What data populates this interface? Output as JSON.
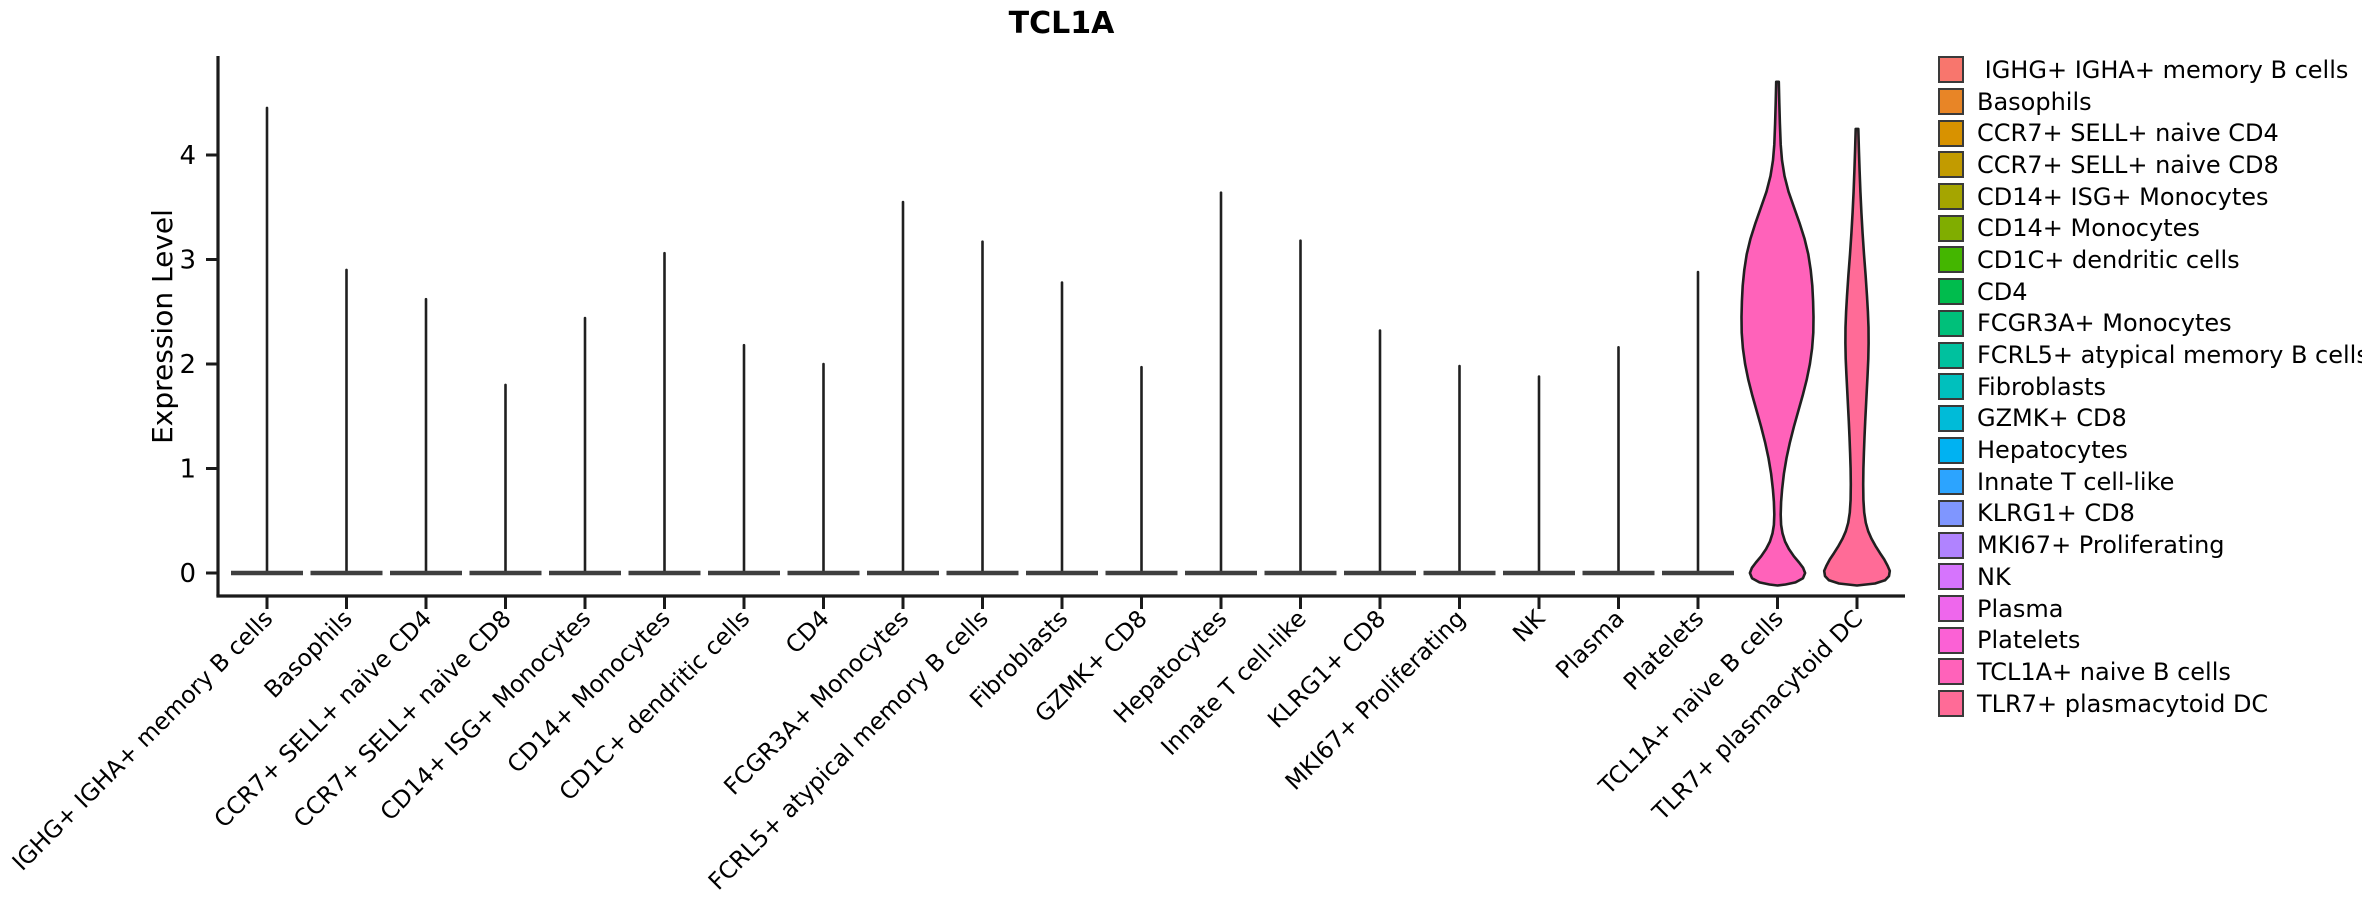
{
  "title": "TCL1A",
  "chart_data": {
    "type": "violin",
    "title": "TCL1A",
    "xlabel": "",
    "ylabel": "Expression Level",
    "ylim": [
      -0.25,
      4.95
    ],
    "yticks": [
      0,
      1,
      2,
      3,
      4
    ],
    "grid": false,
    "legend_position": "right",
    "categories": [
      "IGHG+ IGHA+ memory B cells",
      "Basophils",
      "CCR7+ SELL+ naive CD4",
      "CCR7+ SELL+ naive CD8",
      "CD14+ ISG+ Monocytes",
      "CD14+ Monocytes",
      "CD1C+ dendritic cells",
      "CD4",
      "FCGR3A+ Monocytes",
      "FCRL5+ atypical memory B cells",
      "Fibroblasts",
      "GZMK+ CD8",
      "Hepatocytes",
      "Innate T cell-like",
      "KLRG1+ CD8",
      "MKI67+ Proliferating",
      "NK",
      "Plasma",
      "Platelets",
      "TCL1A+ naive B cells",
      "TLR7+ plasmacytoid DC"
    ],
    "legend_labels": [
      " IGHG+ IGHA+ memory B cells",
      "Basophils",
      "CCR7+ SELL+ naive CD4",
      "CCR7+ SELL+ naive CD8",
      "CD14+ ISG+ Monocytes",
      "CD14+ Monocytes",
      "CD1C+ dendritic cells",
      "CD4",
      "FCGR3A+ Monocytes",
      "FCRL5+ atypical memory B cells",
      "Fibroblasts",
      "GZMK+ CD8",
      "Hepatocytes",
      "Innate T cell-like",
      "KLRG1+ CD8",
      "MKI67+ Proliferating",
      "NK",
      "Plasma",
      "Platelets",
      "TCL1A+ naive B cells",
      "TLR7+ plasmacytoid DC"
    ],
    "colors": [
      "#F8766D",
      "#E88526",
      "#D89200",
      "#C29B00",
      "#A5A500",
      "#80AD00",
      "#44B600",
      "#00BC4D",
      "#00C07A",
      "#00C19E",
      "#00C0BD",
      "#00BBD8",
      "#00B2F2",
      "#2CA4FF",
      "#7F96FF",
      "#B083FF",
      "#D674FD",
      "#EE67EC",
      "#FB61D5",
      "#FF62BA",
      "#FF6B97"
    ],
    "series": [
      {
        "name": "IGHG+ IGHA+ memory B cells",
        "shape": "spike",
        "min": 0,
        "max": 4.45
      },
      {
        "name": "Basophils",
        "shape": "spike",
        "min": 0,
        "max": 2.9
      },
      {
        "name": "CCR7+ SELL+ naive CD4",
        "shape": "spike",
        "min": 0,
        "max": 2.62
      },
      {
        "name": "CCR7+ SELL+ naive CD8",
        "shape": "spike",
        "min": 0,
        "max": 1.8
      },
      {
        "name": "CD14+ ISG+ Monocytes",
        "shape": "spike",
        "min": 0,
        "max": 2.44
      },
      {
        "name": "CD14+ Monocytes",
        "shape": "spike",
        "min": 0,
        "max": 3.06
      },
      {
        "name": "CD1C+ dendritic cells",
        "shape": "spike",
        "min": 0,
        "max": 2.18
      },
      {
        "name": "CD4",
        "shape": "spike",
        "min": 0,
        "max": 2.0
      },
      {
        "name": "FCGR3A+ Monocytes",
        "shape": "spike",
        "min": 0,
        "max": 3.55
      },
      {
        "name": "FCRL5+ atypical memory B cells",
        "shape": "spike",
        "min": 0,
        "max": 3.17
      },
      {
        "name": "Fibroblasts",
        "shape": "spike",
        "min": 0,
        "max": 2.78
      },
      {
        "name": "GZMK+ CD8",
        "shape": "spike",
        "min": 0,
        "max": 1.97
      },
      {
        "name": "Hepatocytes",
        "shape": "spike",
        "min": 0,
        "max": 3.64
      },
      {
        "name": "Innate T cell-like",
        "shape": "spike",
        "min": 0,
        "max": 3.18
      },
      {
        "name": "KLRG1+ CD8",
        "shape": "spike",
        "min": 0,
        "max": 2.32
      },
      {
        "name": "MKI67+ Proliferating",
        "shape": "spike",
        "min": 0,
        "max": 1.98
      },
      {
        "name": "NK",
        "shape": "spike",
        "min": 0,
        "max": 1.88
      },
      {
        "name": "Plasma",
        "shape": "spike",
        "min": 0,
        "max": 2.16
      },
      {
        "name": "Platelets",
        "shape": "spike",
        "min": 0,
        "max": 2.88
      },
      {
        "name": "TCL1A+ naive B cells",
        "shape": "violin",
        "min": 0,
        "max": 4.7,
        "mode": 2.45
      },
      {
        "name": "TLR7+ plasmacytoid DC",
        "shape": "violin",
        "min": 0,
        "max": 4.25,
        "mode": 0.02
      }
    ],
    "violin_profiles": {
      "19": [
        [
          4.7,
          1.3
        ],
        [
          4.5,
          1.8
        ],
        [
          4.3,
          2.4
        ],
        [
          4.1,
          3.2
        ],
        [
          3.95,
          4.5
        ],
        [
          3.8,
          7.0
        ],
        [
          3.65,
          11.0
        ],
        [
          3.5,
          16.5
        ],
        [
          3.35,
          22.0
        ],
        [
          3.2,
          27.0
        ],
        [
          3.05,
          30.8
        ],
        [
          2.9,
          33.2
        ],
        [
          2.75,
          34.8
        ],
        [
          2.6,
          35.6
        ],
        [
          2.45,
          36.0
        ],
        [
          2.3,
          35.8
        ],
        [
          2.15,
          34.6
        ],
        [
          2.0,
          32.4
        ],
        [
          1.85,
          29.2
        ],
        [
          1.7,
          25.2
        ],
        [
          1.55,
          20.8
        ],
        [
          1.4,
          16.4
        ],
        [
          1.25,
          12.4
        ],
        [
          1.1,
          9.0
        ],
        [
          0.95,
          6.4
        ],
        [
          0.8,
          4.6
        ],
        [
          0.68,
          3.6
        ],
        [
          0.56,
          3.2
        ],
        [
          0.46,
          3.6
        ],
        [
          0.38,
          5.0
        ],
        [
          0.3,
          7.6
        ],
        [
          0.23,
          11.4
        ],
        [
          0.16,
          16.4
        ],
        [
          0.1,
          21.6
        ],
        [
          0.05,
          25.6
        ],
        [
          0.0,
          27.6
        ],
        [
          -0.05,
          25.5
        ],
        [
          -0.09,
          18.0
        ],
        [
          -0.11,
          8.0
        ],
        [
          -0.12,
          0.0
        ]
      ],
      "20": [
        [
          4.25,
          1.3
        ],
        [
          4.05,
          1.9
        ],
        [
          3.85,
          2.6
        ],
        [
          3.65,
          3.4
        ],
        [
          3.45,
          4.4
        ],
        [
          3.25,
          5.6
        ],
        [
          3.05,
          7.0
        ],
        [
          2.85,
          8.6
        ],
        [
          2.65,
          10.0
        ],
        [
          2.5,
          10.9
        ],
        [
          2.35,
          11.5
        ],
        [
          2.2,
          11.6
        ],
        [
          2.05,
          11.3
        ],
        [
          1.9,
          10.6
        ],
        [
          1.75,
          9.8
        ],
        [
          1.6,
          9.0
        ],
        [
          1.45,
          8.2
        ],
        [
          1.3,
          7.5
        ],
        [
          1.15,
          6.9
        ],
        [
          1.0,
          6.4
        ],
        [
          0.85,
          6.2
        ],
        [
          0.7,
          6.4
        ],
        [
          0.58,
          7.2
        ],
        [
          0.48,
          8.8
        ],
        [
          0.4,
          11.2
        ],
        [
          0.33,
          14.4
        ],
        [
          0.26,
          18.4
        ],
        [
          0.19,
          23.0
        ],
        [
          0.13,
          27.2
        ],
        [
          0.07,
          30.6
        ],
        [
          0.02,
          32.8
        ],
        [
          -0.03,
          32.0
        ],
        [
          -0.07,
          28.0
        ],
        [
          -0.1,
          18.0
        ],
        [
          -0.12,
          0.0
        ]
      ]
    },
    "style": {
      "outline_color": "#202020",
      "base_bar_color": "#3f3f3f",
      "axis_color": "#1a1a1a",
      "background": "#ffffff"
    }
  }
}
